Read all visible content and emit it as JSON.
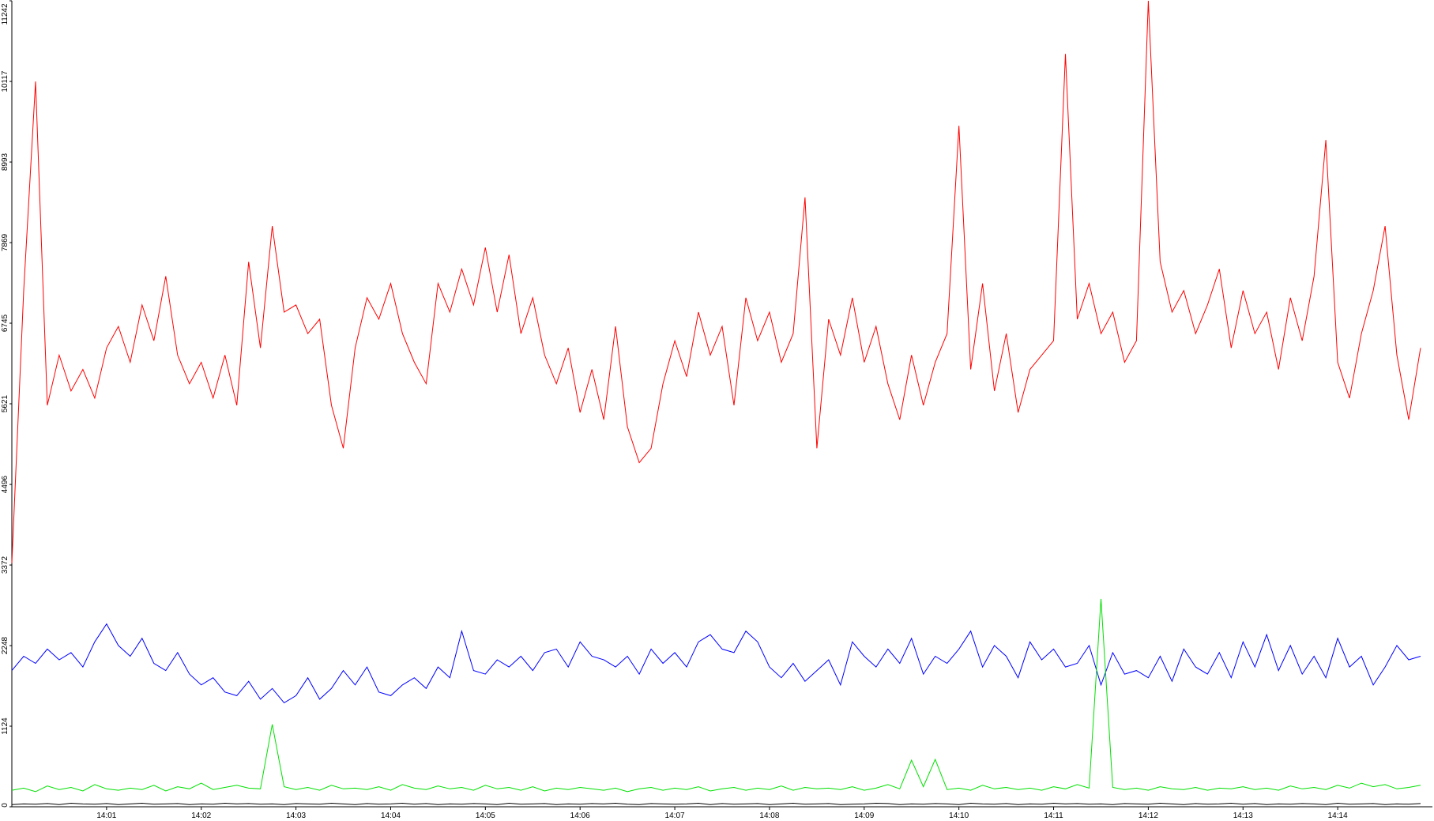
{
  "chart_data": {
    "type": "line",
    "categories": [
      null,
      null,
      null,
      null,
      null,
      null,
      null,
      null,
      "14:01",
      null,
      null,
      null,
      null,
      null,
      null,
      null,
      "14:02",
      null,
      null,
      null,
      null,
      null,
      null,
      null,
      "14:03",
      null,
      null,
      null,
      null,
      null,
      null,
      null,
      "14:04",
      null,
      null,
      null,
      null,
      null,
      null,
      null,
      "14:05",
      null,
      null,
      null,
      null,
      null,
      null,
      null,
      "14:06",
      null,
      null,
      null,
      null,
      null,
      null,
      null,
      "14:07",
      null,
      null,
      null,
      null,
      null,
      null,
      null,
      "14:08",
      null,
      null,
      null,
      null,
      null,
      null,
      null,
      "14:09",
      null,
      null,
      null,
      null,
      null,
      null,
      null,
      "14:10",
      null,
      null,
      null,
      null,
      null,
      null,
      null,
      "14:11",
      null,
      null,
      null,
      null,
      null,
      null,
      null,
      "14:12",
      null,
      null,
      null,
      null,
      null,
      null,
      null,
      "14:13",
      null,
      null,
      null,
      null,
      null,
      null,
      null,
      "14:14",
      null,
      null,
      null,
      null,
      null,
      null,
      null
    ],
    "series": [
      {
        "color": "#ff0000",
        "values": [
          3400,
          7200,
          10117,
          5600,
          6300,
          5800,
          6100,
          5700,
          6400,
          6700,
          6200,
          7000,
          6500,
          7400,
          6300,
          5900,
          6200,
          5700,
          6300,
          5600,
          7600,
          6400,
          8100,
          6900,
          7000,
          6600,
          6800,
          5600,
          5000,
          6400,
          7100,
          6800,
          7300,
          6600,
          6200,
          5900,
          7300,
          6900,
          7500,
          7000,
          7800,
          6900,
          7700,
          6600,
          7100,
          6300,
          5900,
          6400,
          5500,
          6100,
          5400,
          6700,
          5300,
          4800,
          5000,
          5900,
          6500,
          6000,
          6900,
          6300,
          6700,
          5600,
          7100,
          6500,
          6900,
          6200,
          6600,
          8500,
          5000,
          6800,
          6300,
          7100,
          6200,
          6700,
          5900,
          5400,
          6300,
          5600,
          6200,
          6600,
          9500,
          6100,
          7300,
          5800,
          6600,
          5500,
          6100,
          6300,
          6500,
          10500,
          6800,
          7300,
          6600,
          6900,
          6200,
          6500,
          11242,
          7600,
          6900,
          7200,
          6600,
          7000,
          7500,
          6400,
          7200,
          6600,
          6900,
          6100,
          7100,
          6500,
          7400,
          9300,
          6200,
          5700,
          6600,
          7200,
          8100,
          6300,
          5400,
          6400
        ]
      },
      {
        "color": "#0000ff",
        "values": [
          1900,
          2100,
          2000,
          2200,
          2050,
          2150,
          1950,
          2300,
          2550,
          2250,
          2100,
          2350,
          2000,
          1900,
          2150,
          1850,
          1700,
          1800,
          1600,
          1550,
          1750,
          1500,
          1650,
          1450,
          1550,
          1800,
          1500,
          1650,
          1900,
          1700,
          1950,
          1600,
          1550,
          1700,
          1800,
          1650,
          1950,
          1800,
          2450,
          1900,
          1850,
          2050,
          1950,
          2100,
          1900,
          2150,
          2200,
          1950,
          2300,
          2100,
          2050,
          1950,
          2100,
          1850,
          2200,
          2000,
          2150,
          1950,
          2300,
          2400,
          2200,
          2150,
          2450,
          2300,
          1950,
          1800,
          2000,
          1750,
          1900,
          2050,
          1700,
          2300,
          2100,
          1950,
          2200,
          2000,
          2350,
          1850,
          2100,
          2000,
          2200,
          2450,
          1950,
          2250,
          2100,
          1800,
          2300,
          2050,
          2200,
          1950,
          2000,
          2250,
          1700,
          2150,
          1850,
          1900,
          1800,
          2100,
          1750,
          2200,
          1950,
          1850,
          2150,
          1800,
          2300,
          1950,
          2400,
          1900,
          2250,
          1850,
          2100,
          1800,
          2350,
          1950,
          2100,
          1700,
          1950,
          2250,
          2050,
          2100
        ]
      },
      {
        "color": "#00e000",
        "values": [
          230,
          260,
          210,
          290,
          240,
          270,
          220,
          310,
          250,
          230,
          260,
          240,
          300,
          220,
          280,
          250,
          330,
          240,
          270,
          300,
          260,
          250,
          1150,
          280,
          240,
          270,
          230,
          300,
          250,
          260,
          240,
          280,
          230,
          310,
          260,
          240,
          290,
          250,
          270,
          230,
          300,
          250,
          270,
          230,
          280,
          220,
          260,
          240,
          270,
          250,
          230,
          260,
          210,
          250,
          270,
          230,
          260,
          240,
          280,
          220,
          250,
          270,
          230,
          260,
          240,
          290,
          230,
          270,
          250,
          260,
          240,
          280,
          230,
          260,
          310,
          250,
          650,
          280,
          660,
          240,
          260,
          230,
          300,
          250,
          270,
          240,
          260,
          230,
          280,
          250,
          310,
          260,
          2900,
          270,
          240,
          260,
          230,
          280,
          250,
          240,
          270,
          230,
          260,
          250,
          280,
          240,
          260,
          230,
          290,
          250,
          270,
          240,
          300,
          260,
          330,
          280,
          310,
          250,
          270,
          300
        ]
      },
      {
        "color": "#000000",
        "values": [
          30,
          40,
          35,
          45,
          30,
          50,
          40,
          35,
          45,
          30,
          40,
          50,
          35,
          40,
          45,
          30,
          40,
          35,
          50,
          40,
          45,
          35,
          40,
          30,
          45,
          40,
          35,
          50,
          40,
          30,
          45,
          35,
          40,
          50,
          35,
          45,
          30,
          40,
          35,
          45,
          40,
          30,
          50,
          35,
          40,
          45,
          30,
          40,
          35,
          45,
          40,
          50,
          35,
          30,
          45,
          40,
          35,
          40,
          50,
          30,
          45,
          35,
          40,
          45,
          30,
          40,
          50,
          35,
          40,
          45,
          30,
          35,
          40,
          50,
          45,
          30,
          40,
          35,
          45,
          40,
          30,
          50,
          40,
          35,
          45,
          30,
          40,
          35,
          50,
          40,
          45,
          35,
          40,
          30,
          45,
          40,
          35,
          50,
          40,
          30,
          45,
          35,
          40,
          50,
          35,
          45,
          30,
          40,
          35,
          45,
          40,
          30,
          50,
          35,
          40,
          45,
          30,
          40,
          35,
          45
        ]
      }
    ],
    "ylim": [
      0,
      11242
    ],
    "yticks": [
      0,
      1124,
      2248,
      3372,
      4496,
      5621,
      6745,
      7869,
      8993,
      10117,
      11242
    ]
  }
}
